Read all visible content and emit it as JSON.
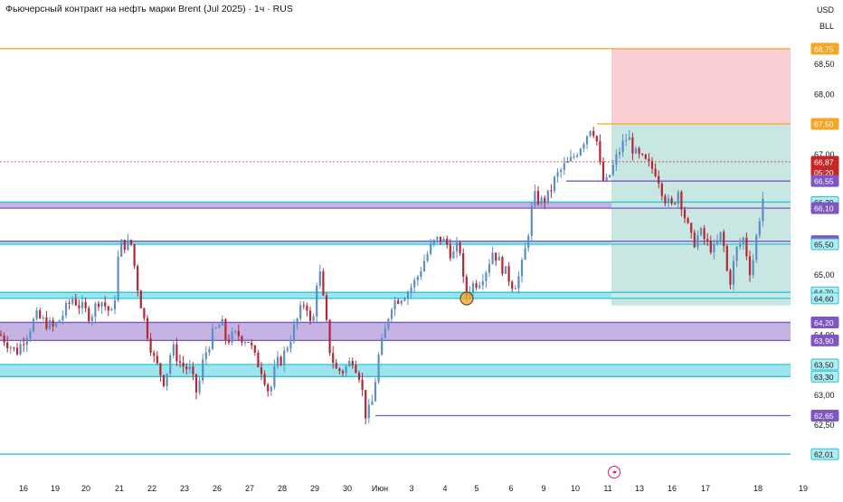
{
  "title": "Фьючерсный контракт на нефть марки Brent (Jul 2025) · 1ч · RUS",
  "corner": {
    "currency": "USD",
    "unit": "BLL"
  },
  "colors": {
    "up": "#5b8ec4",
    "down": "#b32633",
    "marker": "#f5a623",
    "orange": "#f5a623",
    "purple": "#7e57c2",
    "teal": "#26c6da",
    "profit": "#c8e6e2",
    "loss": "#f8ced3",
    "last": "#c62828"
  },
  "chart_data": {
    "type": "candlestick",
    "title": "Фьючерсный контракт на нефть марки Brent (Jul 2025) · 1ч · RUS",
    "y_ticks": [
      "68,50",
      "68,00",
      "67,00",
      "65,00",
      "64,00",
      "63,00",
      "62,50"
    ],
    "ylim": [
      62.0,
      69.0
    ],
    "x_ticks": [
      "16",
      "19",
      "20",
      "21",
      "22",
      "23",
      "26",
      "27",
      "28",
      "29",
      "30",
      "Июн",
      "3",
      "4",
      "5",
      "6",
      "9",
      "10",
      "11",
      "13",
      "16",
      "17",
      "18",
      "19"
    ],
    "price_path": [
      [
        0,
        64.0
      ],
      [
        18,
        63.7
      ],
      [
        40,
        64.3
      ],
      [
        60,
        64.1
      ],
      [
        80,
        64.6
      ],
      [
        100,
        64.3
      ],
      [
        110,
        64.6
      ],
      [
        125,
        64.3
      ],
      [
        132,
        65.5
      ],
      [
        145,
        65.5
      ],
      [
        152,
        64.8
      ],
      [
        160,
        64.2
      ],
      [
        170,
        63.6
      ],
      [
        182,
        63.2
      ],
      [
        190,
        63.8
      ],
      [
        200,
        63.5
      ],
      [
        210,
        63.4
      ],
      [
        218,
        63.0
      ],
      [
        225,
        63.6
      ],
      [
        235,
        64.0
      ],
      [
        245,
        64.2
      ],
      [
        250,
        63.9
      ],
      [
        262,
        64.0
      ],
      [
        275,
        63.9
      ],
      [
        282,
        63.6
      ],
      [
        290,
        63.4
      ],
      [
        298,
        63.0
      ],
      [
        305,
        63.5
      ],
      [
        312,
        63.6
      ],
      [
        320,
        63.9
      ],
      [
        330,
        64.3
      ],
      [
        338,
        64.6
      ],
      [
        345,
        64.0
      ],
      [
        352,
        65.2
      ],
      [
        358,
        64.5
      ],
      [
        365,
        63.7
      ],
      [
        372,
        63.4
      ],
      [
        380,
        63.4
      ],
      [
        390,
        63.6
      ],
      [
        398,
        63.3
      ],
      [
        405,
        62.6
      ],
      [
        412,
        62.9
      ],
      [
        418,
        63.6
      ],
      [
        425,
        64.0
      ],
      [
        432,
        64.5
      ],
      [
        440,
        64.6
      ],
      [
        450,
        64.7
      ],
      [
        460,
        64.9
      ],
      [
        468,
        65.2
      ],
      [
        478,
        65.5
      ],
      [
        486,
        65.6
      ],
      [
        494,
        65.5
      ],
      [
        500,
        65.3
      ],
      [
        508,
        65.5
      ],
      [
        514,
        64.6
      ],
      [
        520,
        64.8
      ],
      [
        530,
        64.9
      ],
      [
        538,
        65.1
      ],
      [
        545,
        65.4
      ],
      [
        552,
        65.2
      ],
      [
        560,
        65.0
      ],
      [
        568,
        64.8
      ],
      [
        575,
        65.0
      ],
      [
        582,
        65.5
      ],
      [
        590,
        66.3
      ],
      [
        598,
        66.2
      ],
      [
        606,
        66.3
      ],
      [
        614,
        66.6
      ],
      [
        624,
        66.8
      ],
      [
        632,
        66.9
      ],
      [
        640,
        67.1
      ],
      [
        648,
        67.3
      ],
      [
        654,
        67.5
      ],
      [
        660,
        67.2
      ],
      [
        665,
        66.6
      ],
      [
        670,
        66.5
      ],
      [
        678,
        66.8
      ],
      [
        686,
        67.1
      ],
      [
        694,
        67.3
      ],
      [
        702,
        67.0
      ],
      [
        710,
        66.9
      ],
      [
        718,
        66.8
      ],
      [
        726,
        66.7
      ],
      [
        734,
        66.3
      ],
      [
        742,
        66.1
      ],
      [
        750,
        66.4
      ],
      [
        758,
        65.9
      ],
      [
        766,
        65.5
      ],
      [
        774,
        65.7
      ],
      [
        782,
        65.5
      ],
      [
        790,
        65.4
      ],
      [
        798,
        65.7
      ],
      [
        806,
        64.8
      ],
      [
        814,
        65.4
      ],
      [
        822,
        65.6
      ],
      [
        830,
        65.0
      ],
      [
        838,
        65.8
      ],
      [
        845,
        66.4
      ]
    ],
    "horizontal_levels": [
      {
        "value": "68,75",
        "color": "#f5a623"
      },
      {
        "value": "67,50",
        "color": "#f5a623"
      },
      {
        "value": "66,87",
        "color": "#c62828",
        "sub": "05:20",
        "dashed": true
      },
      {
        "value": "66,55",
        "color": "#7e57c2"
      },
      {
        "value": "66,20",
        "color": "#26c6da"
      },
      {
        "value": "66,10",
        "color": "#7e57c2"
      },
      {
        "value": "65,55",
        "color": "#7e57c2"
      },
      {
        "value": "65,50",
        "color": "#26c6da"
      },
      {
        "value": "64,70",
        "color": "#26c6da"
      },
      {
        "value": "64,60",
        "color": "#26c6da"
      },
      {
        "value": "64,20",
        "color": "#7e57c2"
      },
      {
        "value": "63,90",
        "color": "#7e57c2"
      },
      {
        "value": "63,50",
        "color": "#26c6da"
      },
      {
        "value": "63,30",
        "color": "#26c6da"
      },
      {
        "value": "62,65",
        "color": "#7e57c2"
      },
      {
        "value": "62,01",
        "color": "#26c6da"
      }
    ],
    "zones": [
      {
        "from": "66,10",
        "to": "66,20",
        "color": "#7e57c2"
      },
      {
        "from": "65,50",
        "to": "65,55",
        "color": "#26c6da"
      },
      {
        "from": "64,60",
        "to": "64,70",
        "color": "#26c6da"
      },
      {
        "from": "63,90",
        "to": "64,20",
        "color": "#7e57c2"
      },
      {
        "from": "63,30",
        "to": "63,50",
        "color": "#26c6da"
      }
    ],
    "position": {
      "entry": "67,50",
      "target": "64,60",
      "stop": "68,75",
      "type": "short"
    }
  }
}
